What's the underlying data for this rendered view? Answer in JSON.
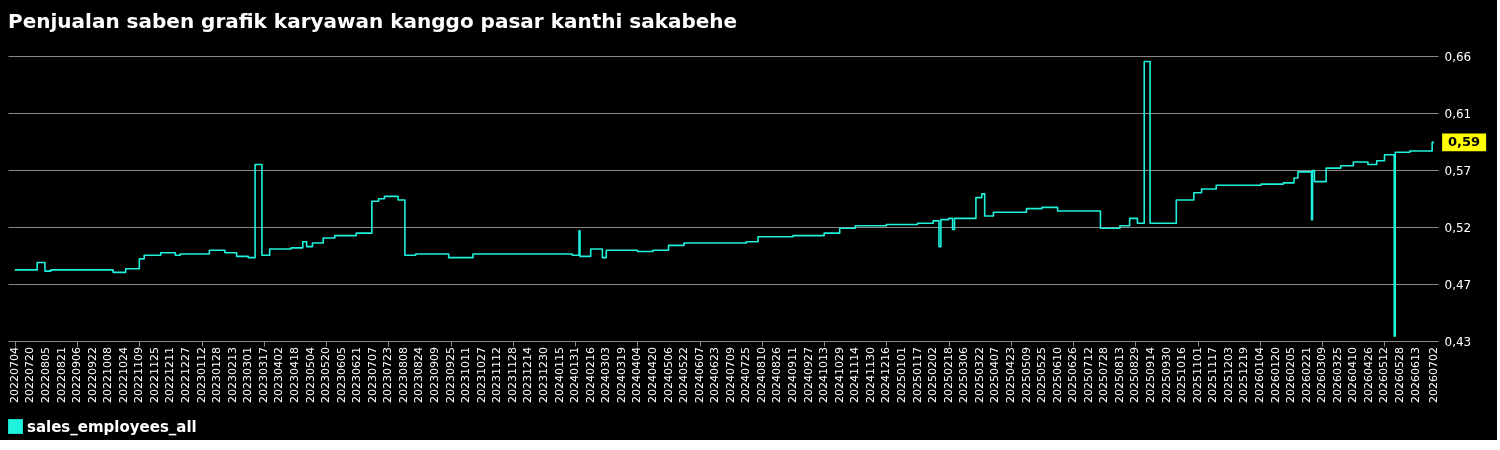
{
  "chart_data": {
    "type": "step",
    "title": "Penjualan saben grafik karyawan kanggo pasar kanthi sakabehe",
    "x": [
      "2022-07-04",
      "2022-07-27",
      "2022-08-04",
      "2022-08-10",
      "2022-10-13",
      "2022-10-26",
      "2022-11-09",
      "2022-11-14",
      "2022-12-01",
      "2022-12-16",
      "2022-12-21",
      "2023-01-20",
      "2023-02-05",
      "2023-02-17",
      "2023-03-01",
      "2023-03-08",
      "2023-03-15",
      "2023-03-23",
      "2023-04-14",
      "2023-04-26",
      "2023-04-30",
      "2023-05-06",
      "2023-05-17",
      "2023-05-29",
      "2023-06-20",
      "2023-07-06",
      "2023-07-13",
      "2023-07-19",
      "2023-08-02",
      "2023-08-09",
      "2023-08-20",
      "2023-09-23",
      "2023-10-18",
      "2024-01-28",
      "2024-02-04",
      "2024-02-05",
      "2024-02-16",
      "2024-02-28",
      "2024-03-03",
      "2024-04-04",
      "2024-04-20",
      "2024-05-06",
      "2024-05-22",
      "2024-07-25",
      "2024-08-06",
      "2024-09-11",
      "2024-10-13",
      "2024-10-29",
      "2024-11-14",
      "2024-12-16",
      "2025-01-17",
      "2025-02-02",
      "2025-02-08",
      "2025-02-10",
      "2025-02-18",
      "2025-02-22",
      "2025-02-24",
      "2025-03-18",
      "2025-03-24",
      "2025-03-27",
      "2025-04-05",
      "2025-05-09",
      "2025-05-25",
      "2025-06-10",
      "2025-07-24",
      "2025-08-13",
      "2025-08-23",
      "2025-08-31",
      "2025-09-07",
      "2025-09-13",
      "2025-10-10",
      "2025-10-28",
      "2025-11-05",
      "2025-11-20",
      "2026-01-05",
      "2026-01-28",
      "2026-02-08",
      "2026-02-12",
      "2026-02-26",
      "2026-02-27",
      "2026-03-01",
      "2026-03-13",
      "2026-03-28",
      "2026-04-10",
      "2026-04-25",
      "2026-05-04",
      "2026-05-12",
      "2026-05-22",
      "2026-05-23",
      "2026-06-07",
      "2026-06-30",
      "2026-07-02"
    ],
    "series": [
      {
        "name": "sales_employees_all",
        "color": "#1ef2dc",
        "values": [
          0.486,
          0.492,
          0.485,
          0.486,
          0.484,
          0.487,
          0.495,
          0.498,
          0.5,
          0.498,
          0.499,
          0.502,
          0.5,
          0.497,
          0.496,
          0.572,
          0.498,
          0.503,
          0.504,
          0.509,
          0.505,
          0.508,
          0.512,
          0.514,
          0.516,
          0.542,
          0.544,
          0.546,
          0.543,
          0.498,
          0.499,
          0.496,
          0.499,
          0.498,
          0.518,
          0.497,
          0.503,
          0.496,
          0.502,
          0.501,
          0.502,
          0.506,
          0.508,
          0.509,
          0.513,
          0.514,
          0.516,
          0.52,
          0.522,
          0.523,
          0.524,
          0.526,
          0.505,
          0.527,
          0.528,
          0.519,
          0.528,
          0.545,
          0.548,
          0.53,
          0.533,
          0.536,
          0.537,
          0.534,
          0.52,
          0.522,
          0.528,
          0.524,
          0.656,
          0.524,
          0.543,
          0.549,
          0.552,
          0.555,
          0.556,
          0.557,
          0.561,
          0.566,
          0.527,
          0.567,
          0.558,
          0.569,
          0.571,
          0.574,
          0.572,
          0.575,
          0.58,
          0.432,
          0.582,
          0.583,
          0.59,
          0.59
        ]
      }
    ],
    "xlim": [
      "2022-06-27",
      "2026-07-06"
    ],
    "xticks": [
      {
        "value": "2022-07-04",
        "label": "20220704"
      },
      {
        "value": "2022-07-20",
        "label": "20220720"
      },
      {
        "value": "2022-08-05",
        "label": "20220805"
      },
      {
        "value": "2022-08-21",
        "label": "20220821"
      },
      {
        "value": "2022-09-06",
        "label": "20220906"
      },
      {
        "value": "2022-09-22",
        "label": "20220922"
      },
      {
        "value": "2022-10-08",
        "label": "20221008"
      },
      {
        "value": "2022-10-24",
        "label": "20221024"
      },
      {
        "value": "2022-11-09",
        "label": "20221109"
      },
      {
        "value": "2022-11-25",
        "label": "20221125"
      },
      {
        "value": "2022-12-11",
        "label": "20221211"
      },
      {
        "value": "2022-12-27",
        "label": "20221227"
      },
      {
        "value": "2023-01-12",
        "label": "20230112"
      },
      {
        "value": "2023-01-28",
        "label": "20230128"
      },
      {
        "value": "2023-02-13",
        "label": "20230213"
      },
      {
        "value": "2023-03-01",
        "label": "20230301"
      },
      {
        "value": "2023-03-17",
        "label": "20230317"
      },
      {
        "value": "2023-04-02",
        "label": "20230402"
      },
      {
        "value": "2023-04-18",
        "label": "20230418"
      },
      {
        "value": "2023-05-04",
        "label": "20230504"
      },
      {
        "value": "2023-05-20",
        "label": "20230520"
      },
      {
        "value": "2023-06-05",
        "label": "20230605"
      },
      {
        "value": "2023-06-21",
        "label": "20230621"
      },
      {
        "value": "2023-07-07",
        "label": "20230707"
      },
      {
        "value": "2023-07-23",
        "label": "20230723"
      },
      {
        "value": "2023-08-08",
        "label": "20230808"
      },
      {
        "value": "2023-08-24",
        "label": "20230824"
      },
      {
        "value": "2023-09-09",
        "label": "20230909"
      },
      {
        "value": "2023-09-25",
        "label": "20230925"
      },
      {
        "value": "2023-10-11",
        "label": "20231011"
      },
      {
        "value": "2023-10-27",
        "label": "20231027"
      },
      {
        "value": "2023-11-12",
        "label": "20231112"
      },
      {
        "value": "2023-11-28",
        "label": "20231128"
      },
      {
        "value": "2023-12-14",
        "label": "20231214"
      },
      {
        "value": "2023-12-30",
        "label": "20231230"
      },
      {
        "value": "2024-01-15",
        "label": "20240115"
      },
      {
        "value": "2024-01-31",
        "label": "20240131"
      },
      {
        "value": "2024-02-16",
        "label": "20240216"
      },
      {
        "value": "2024-03-03",
        "label": "20240303"
      },
      {
        "value": "2024-03-19",
        "label": "20240319"
      },
      {
        "value": "2024-04-04",
        "label": "20240404"
      },
      {
        "value": "2024-04-20",
        "label": "20240420"
      },
      {
        "value": "2024-05-06",
        "label": "20240506"
      },
      {
        "value": "2024-05-22",
        "label": "20240522"
      },
      {
        "value": "2024-06-07",
        "label": "20240607"
      },
      {
        "value": "2024-06-23",
        "label": "20240623"
      },
      {
        "value": "2024-07-09",
        "label": "20240709"
      },
      {
        "value": "2024-07-25",
        "label": "20240725"
      },
      {
        "value": "2024-08-10",
        "label": "20240810"
      },
      {
        "value": "2024-08-26",
        "label": "20240826"
      },
      {
        "value": "2024-09-11",
        "label": "20240911"
      },
      {
        "value": "2024-09-27",
        "label": "20240927"
      },
      {
        "value": "2024-10-13",
        "label": "20241013"
      },
      {
        "value": "2024-10-29",
        "label": "20241029"
      },
      {
        "value": "2024-11-14",
        "label": "20241114"
      },
      {
        "value": "2024-11-30",
        "label": "20241130"
      },
      {
        "value": "2024-12-16",
        "label": "20241216"
      },
      {
        "value": "2025-01-01",
        "label": "20250101"
      },
      {
        "value": "2025-01-17",
        "label": "20250117"
      },
      {
        "value": "2025-02-02",
        "label": "20250202"
      },
      {
        "value": "2025-02-18",
        "label": "20250218"
      },
      {
        "value": "2025-03-06",
        "label": "20250306"
      },
      {
        "value": "2025-03-22",
        "label": "20250322"
      },
      {
        "value": "2025-04-07",
        "label": "20250407"
      },
      {
        "value": "2025-04-23",
        "label": "20250423"
      },
      {
        "value": "2025-05-09",
        "label": "20250509"
      },
      {
        "value": "2025-05-25",
        "label": "20250525"
      },
      {
        "value": "2025-06-10",
        "label": "20250610"
      },
      {
        "value": "2025-06-26",
        "label": "20250626"
      },
      {
        "value": "2025-07-12",
        "label": "20250712"
      },
      {
        "value": "2025-07-28",
        "label": "20250728"
      },
      {
        "value": "2025-08-13",
        "label": "20250813"
      },
      {
        "value": "2025-08-29",
        "label": "20250829"
      },
      {
        "value": "2025-09-14",
        "label": "20250914"
      },
      {
        "value": "2025-09-30",
        "label": "20250930"
      },
      {
        "value": "2025-10-16",
        "label": "20251016"
      },
      {
        "value": "2025-11-01",
        "label": "20251101"
      },
      {
        "value": "2025-11-17",
        "label": "20251117"
      },
      {
        "value": "2025-12-03",
        "label": "20251203"
      },
      {
        "value": "2025-12-19",
        "label": "20251219"
      },
      {
        "value": "2026-01-04",
        "label": "20260104"
      },
      {
        "value": "2026-01-20",
        "label": "20260120"
      },
      {
        "value": "2026-02-05",
        "label": "20260205"
      },
      {
        "value": "2026-02-21",
        "label": "20260221"
      },
      {
        "value": "2026-03-09",
        "label": "20260309"
      },
      {
        "value": "2026-03-25",
        "label": "20260325"
      },
      {
        "value": "2026-04-10",
        "label": "20260410"
      },
      {
        "value": "2026-04-26",
        "label": "20260426"
      },
      {
        "value": "2026-05-12",
        "label": "20260512"
      },
      {
        "value": "2026-05-28",
        "label": "20260528"
      },
      {
        "value": "2026-06-13",
        "label": "20260613"
      },
      {
        "value": "2026-07-02",
        "label": "20260702"
      }
    ],
    "ylim": [
      0.428,
      0.6605
    ],
    "yticks": [
      {
        "value": 0.428,
        "label": "0,43"
      },
      {
        "value": 0.4745,
        "label": "0,47"
      },
      {
        "value": 0.521,
        "label": "0,52"
      },
      {
        "value": 0.5675,
        "label": "0,57"
      },
      {
        "value": 0.614,
        "label": "0,61"
      },
      {
        "value": 0.6605,
        "label": "0,66"
      }
    ],
    "annotations": [
      {
        "text": "0,59",
        "x": "2026-07-02",
        "y": 0.59
      }
    ],
    "grid": "y",
    "legend": "bottom left",
    "marker": "none",
    "line_style": "solid"
  }
}
